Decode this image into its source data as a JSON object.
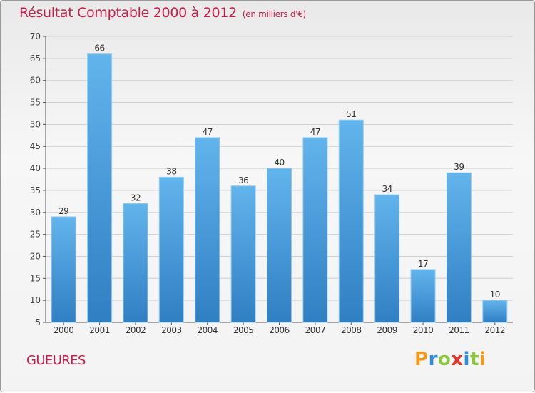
{
  "title": "Résultat Comptable 2000 à 2012",
  "subtitle": "(en milliers d'€)",
  "location": "GUEURES",
  "logo": {
    "letters": [
      "P",
      "r",
      "o",
      "x",
      "i",
      "t",
      "i"
    ],
    "colors": [
      "#f29a1e",
      "#2f8fd6",
      "#8cc63f",
      "#e5332a",
      "#2f8fd6",
      "#8cc63f",
      "#f29a1e"
    ]
  },
  "colors": {
    "bar_top": "#62b4ec",
    "bar_bottom": "#2f7fc3",
    "title": "#c61e4a",
    "grid": "#cfcfcf"
  },
  "chart_data": {
    "type": "bar",
    "categories": [
      "2000",
      "2001",
      "2002",
      "2003",
      "2004",
      "2005",
      "2006",
      "2007",
      "2008",
      "2009",
      "2010",
      "2011",
      "2012"
    ],
    "values": [
      29,
      66,
      32,
      38,
      47,
      36,
      40,
      47,
      51,
      34,
      17,
      39,
      10
    ],
    "ylim": [
      5,
      70
    ],
    "yticks": [
      5,
      10,
      15,
      20,
      25,
      30,
      35,
      40,
      45,
      50,
      55,
      60,
      65,
      70
    ],
    "grid": true
  }
}
